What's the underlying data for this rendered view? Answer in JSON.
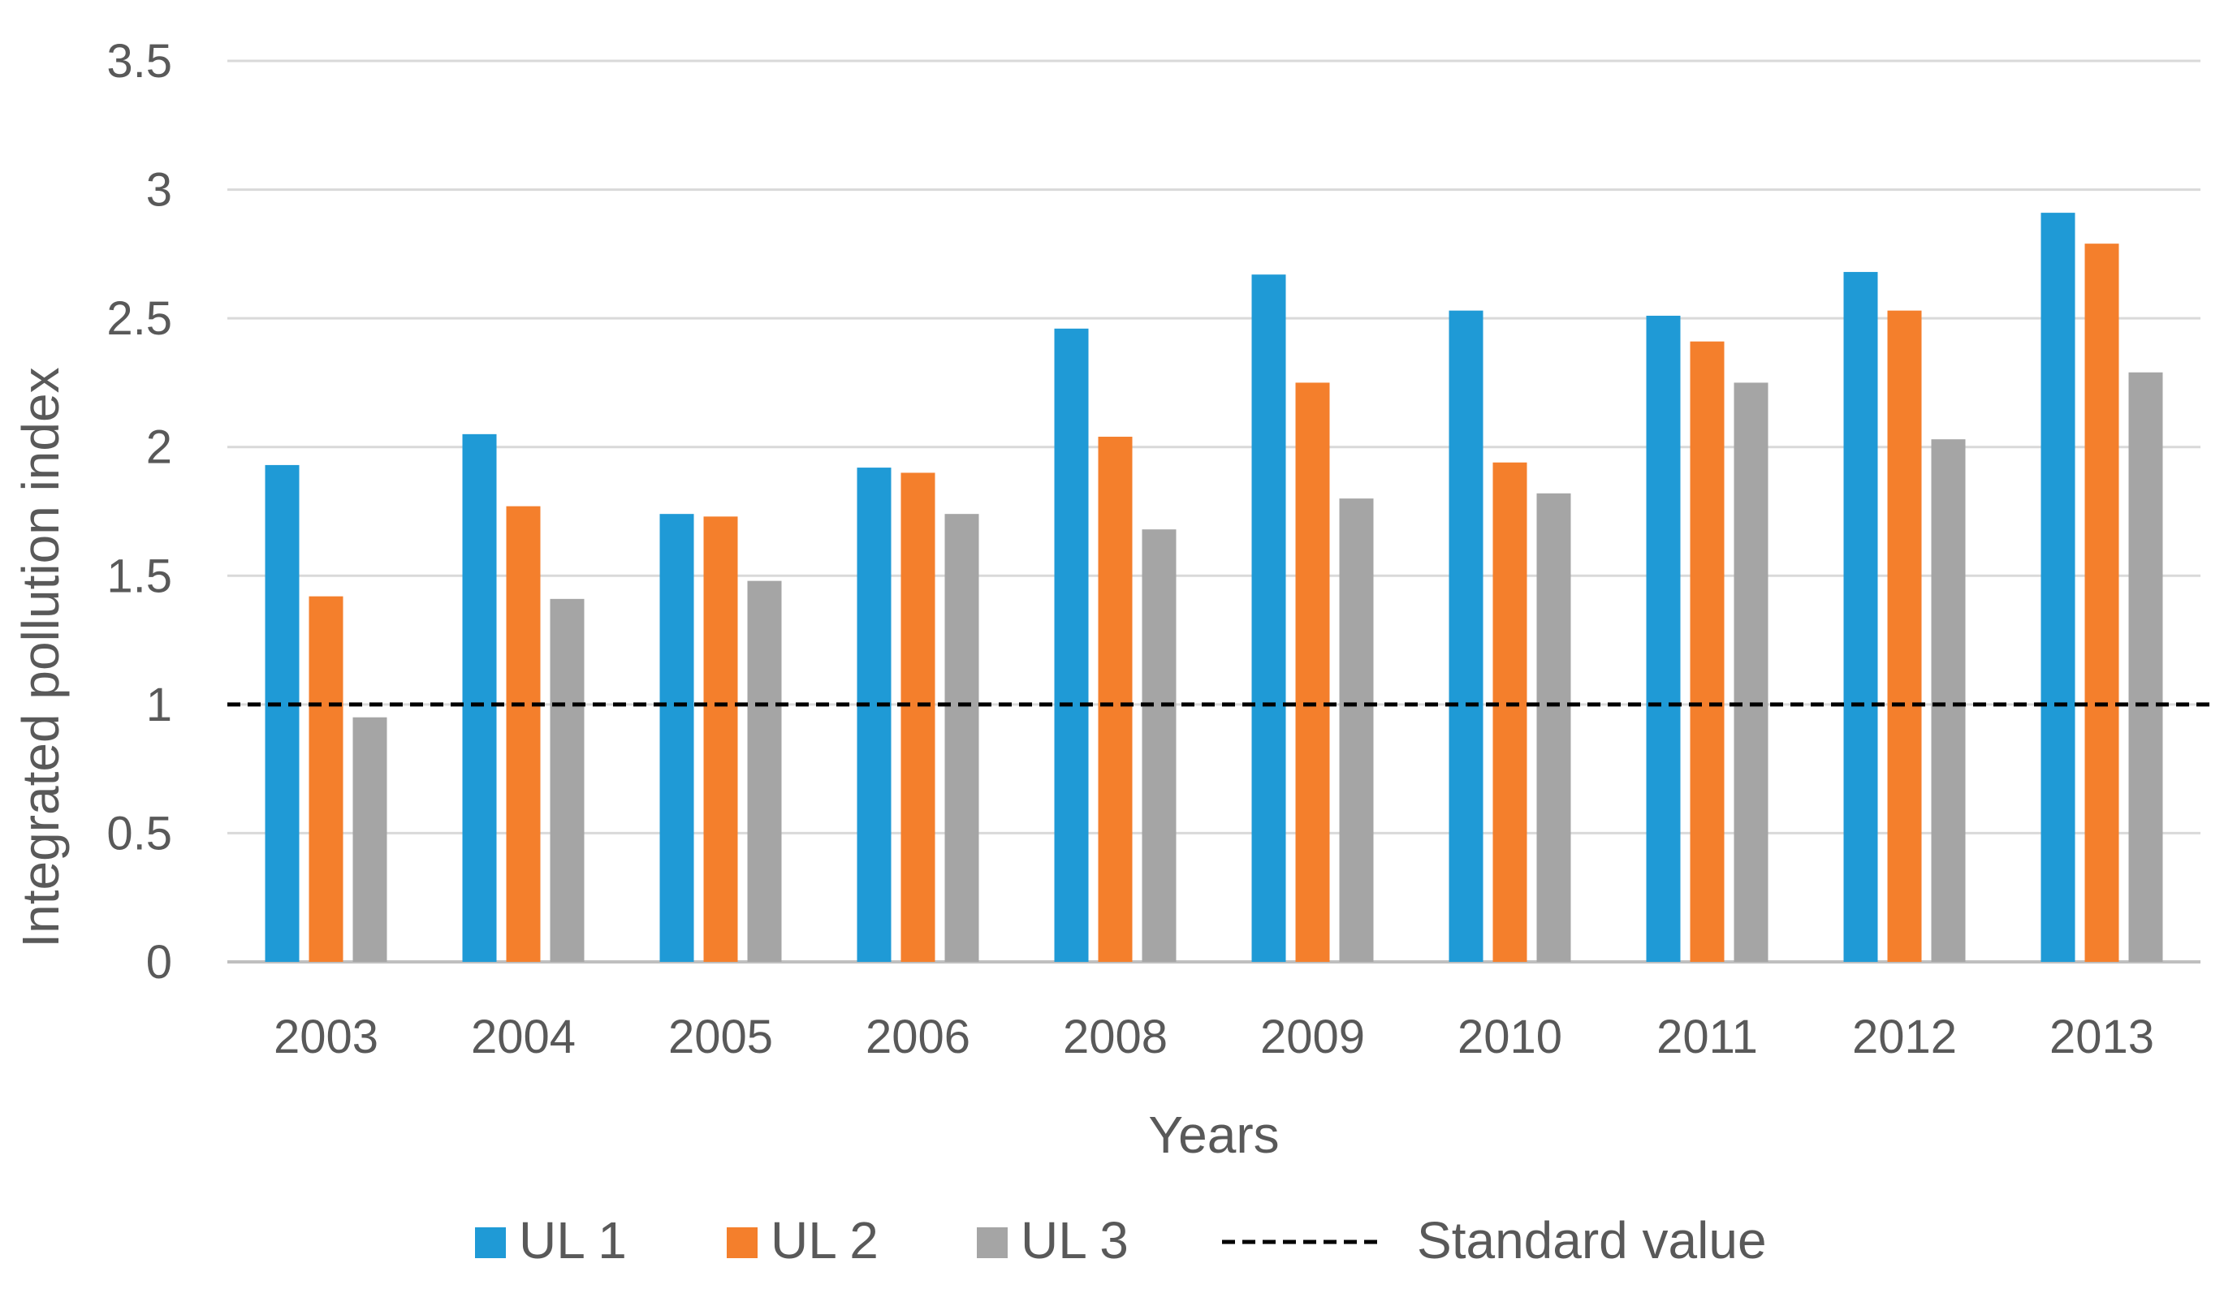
{
  "chart_data": {
    "type": "bar",
    "title": "",
    "xlabel": "Years",
    "ylabel": "Integrated pollution index",
    "categories": [
      "2003",
      "2004",
      "2005",
      "2006",
      "2008",
      "2009",
      "2010",
      "2011",
      "2012",
      "2013"
    ],
    "series": [
      {
        "name": "UL 1",
        "color": "#1f9ad6",
        "values": [
          1.93,
          2.05,
          1.74,
          1.92,
          2.46,
          2.67,
          2.53,
          2.51,
          2.68,
          2.91
        ]
      },
      {
        "name": "UL 2",
        "color": "#f47f2c",
        "values": [
          1.42,
          1.77,
          1.73,
          1.9,
          2.04,
          2.25,
          1.94,
          2.41,
          2.53,
          2.79
        ]
      },
      {
        "name": "UL 3",
        "color": "#a5a5a5",
        "values": [
          0.95,
          1.41,
          1.48,
          1.74,
          1.68,
          1.8,
          1.82,
          2.25,
          2.03,
          2.29
        ]
      }
    ],
    "reference_line": {
      "name": "Standard value",
      "value": 1,
      "style": "dashed",
      "color": "#000000"
    },
    "ylim": [
      0,
      3.5
    ],
    "yticks": [
      "0",
      "0.5",
      "1",
      "1.5",
      "2",
      "2.5",
      "3",
      "3.5"
    ],
    "ytick_values": [
      0,
      0.5,
      1,
      1.5,
      2,
      2.5,
      3,
      3.5
    ],
    "grid": "horizontal",
    "legend_position": "bottom"
  }
}
